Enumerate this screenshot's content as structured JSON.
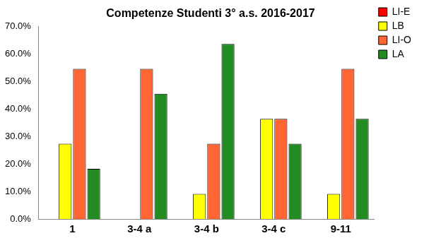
{
  "chart_data": {
    "type": "bar",
    "title": "Competenze Studenti 3° a.s. 2016-2017",
    "categories": [
      "1",
      "3-4 a",
      "3-4 b",
      "3-4 c",
      "9-11"
    ],
    "series": [
      {
        "name": "LI-E",
        "color": "#ff0000",
        "values": [
          0,
          0,
          0,
          0,
          0
        ]
      },
      {
        "name": "LB",
        "color": "#ffff00",
        "values": [
          27.3,
          0,
          9.1,
          36.4,
          9.1
        ]
      },
      {
        "name": "LI-O",
        "color": "#ff6633",
        "values": [
          54.5,
          54.5,
          27.3,
          36.4,
          54.5
        ]
      },
      {
        "name": "LA",
        "color": "#228b22",
        "values": [
          18.2,
          45.5,
          63.6,
          27.3,
          36.4
        ]
      }
    ],
    "ylim": [
      0,
      70
    ],
    "yticks": [
      {
        "value": 0,
        "label": "0.0%"
      },
      {
        "value": 10,
        "label": "10.0%"
      },
      {
        "value": 20,
        "label": "20.0%"
      },
      {
        "value": 30,
        "label": "30.0%"
      },
      {
        "value": 40,
        "label": "40.0%"
      },
      {
        "value": 50,
        "label": "50.0%"
      },
      {
        "value": 60,
        "label": "60.0%"
      },
      {
        "value": 70,
        "label": "70.0%"
      }
    ],
    "grid": false,
    "legend": "right"
  }
}
